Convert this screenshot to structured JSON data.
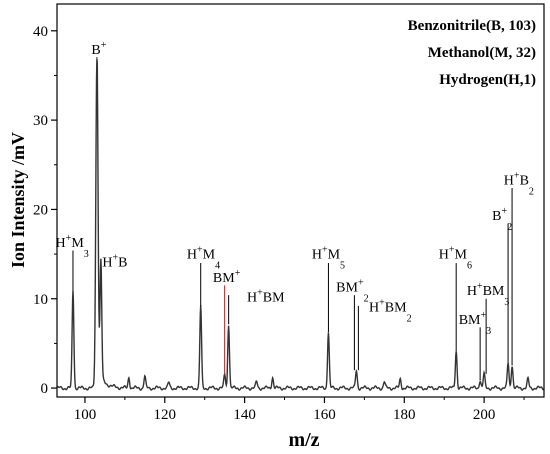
{
  "chart_data": {
    "type": "line",
    "title": "",
    "xlabel": "m/z",
    "ylabel": "Ion Intensity /mV",
    "xlim": [
      93,
      215
    ],
    "ylim": [
      -1,
      43
    ],
    "x_ticks": [
      "100",
      "120",
      "140",
      "160",
      "180",
      "200"
    ],
    "y_ticks": [
      "0",
      "10",
      "20",
      "30",
      "40"
    ],
    "legend": [
      "Benzonitrile(B, 103)",
      "Methanol(M, 32)",
      "Hydrogen(H,1)"
    ],
    "legend_position": "top-right",
    "grid": false,
    "peaks": [
      {
        "mz": 97,
        "intensity": 11.0
      },
      {
        "mz": 103,
        "intensity": 37.0
      },
      {
        "mz": 104,
        "intensity": 13.2
      },
      {
        "mz": 111,
        "intensity": 1.2
      },
      {
        "mz": 115,
        "intensity": 1.3
      },
      {
        "mz": 121,
        "intensity": 0.6
      },
      {
        "mz": 129,
        "intensity": 9.2
      },
      {
        "mz": 135,
        "intensity": 1.5
      },
      {
        "mz": 136,
        "intensity": 7.2
      },
      {
        "mz": 143,
        "intensity": 0.7
      },
      {
        "mz": 147,
        "intensity": 1.2
      },
      {
        "mz": 161,
        "intensity": 6.3
      },
      {
        "mz": 168,
        "intensity": 2.0
      },
      {
        "mz": 175,
        "intensity": 0.7
      },
      {
        "mz": 179,
        "intensity": 1.0
      },
      {
        "mz": 193,
        "intensity": 4.2
      },
      {
        "mz": 199,
        "intensity": 0.9
      },
      {
        "mz": 200,
        "intensity": 1.6
      },
      {
        "mz": 206,
        "intensity": 2.8
      },
      {
        "mz": 207,
        "intensity": 2.6
      },
      {
        "mz": 211,
        "intensity": 1.0
      }
    ],
    "annotations": [
      {
        "base": "B",
        "sup": "+",
        "parts": [],
        "mz": 103,
        "text_x": 103.5,
        "text_y": 37.4,
        "line_top": null,
        "line_bottom": null,
        "color": "#000000"
      },
      {
        "base": "H",
        "sup": "+",
        "parts": [
          [
            "M",
            ""
          ],
          [
            "3",
            "sub"
          ]
        ],
        "mz": 97,
        "text_x": 96.8,
        "text_y": 15.8,
        "line_top": 15.4,
        "line_bottom": 11.0,
        "color": "#000000"
      },
      {
        "base": "H",
        "sup": "+",
        "parts": [
          [
            "B",
            ""
          ]
        ],
        "mz": 104,
        "text_x": 107.5,
        "text_y": 13.6,
        "line_top": null,
        "line_bottom": null,
        "color": "#000000"
      },
      {
        "base": "H",
        "sup": "+",
        "parts": [
          [
            "M",
            ""
          ],
          [
            "4",
            "sub"
          ]
        ],
        "mz": 129,
        "text_x": 129.7,
        "text_y": 14.5,
        "line_top": 14.0,
        "line_bottom": 9.2,
        "color": "#000000"
      },
      {
        "base": "BM",
        "sup": "+",
        "parts": [],
        "mz": 135,
        "text_x": 135.5,
        "text_y": 11.9,
        "line_top": 11.5,
        "line_bottom": 1.5,
        "color": "#ff0000"
      },
      {
        "base": "H",
        "sup": "+",
        "parts": [
          [
            "BM",
            ""
          ]
        ],
        "mz": 136,
        "text_x": 145.3,
        "text_y": 9.7,
        "line_top": 10.4,
        "line_bottom": 7.2,
        "color": "#000000"
      },
      {
        "base": "H",
        "sup": "+",
        "parts": [
          [
            "M",
            ""
          ],
          [
            "5",
            "sub"
          ]
        ],
        "mz": 161,
        "text_x": 161.0,
        "text_y": 14.5,
        "line_top": 14.0,
        "line_bottom": 6.3,
        "color": "#000000"
      },
      {
        "base": "BM",
        "sup": "+",
        "parts": [
          [
            "2",
            "sub"
          ]
        ],
        "mz": 167.5,
        "text_x": 167.0,
        "text_y": 10.8,
        "line_top": 10.4,
        "line_bottom": 2.0,
        "color": "#000000"
      },
      {
        "base": "H",
        "sup": "+",
        "parts": [
          [
            "BM",
            ""
          ],
          [
            "2",
            "sub"
          ]
        ],
        "mz": 168.5,
        "text_x": 176.5,
        "text_y": 8.6,
        "line_top": 9.2,
        "line_bottom": 2.0,
        "color": "#000000"
      },
      {
        "base": "H",
        "sup": "+",
        "parts": [
          [
            "M",
            ""
          ],
          [
            "6",
            "sub"
          ]
        ],
        "mz": 193,
        "text_x": 192.8,
        "text_y": 14.5,
        "line_top": 14.0,
        "line_bottom": 4.2,
        "color": "#000000"
      },
      {
        "base": "H",
        "sup": "+",
        "parts": [
          [
            "BM",
            ""
          ],
          [
            "3",
            "sub"
          ]
        ],
        "mz": 200.5,
        "text_x": 201.0,
        "text_y": 10.4,
        "line_top": 10.0,
        "line_bottom": 1.6,
        "color": "#000000"
      },
      {
        "base": "BM",
        "sup": "+",
        "parts": [
          [
            "3",
            "sub"
          ]
        ],
        "mz": 199,
        "text_x": 197.7,
        "text_y": 7.2,
        "line_top": 6.8,
        "line_bottom": 0.9,
        "color": "#000000"
      },
      {
        "base": "B",
        "sup": "+",
        "parts": [
          [
            "2",
            "sub"
          ]
        ],
        "mz": 206,
        "text_x": 204.5,
        "text_y": 18.8,
        "line_top": 18.4,
        "line_bottom": 2.8,
        "color": "#000000"
      },
      {
        "base": "H",
        "sup": "+",
        "parts": [
          [
            "B",
            ""
          ],
          [
            "2",
            "sub"
          ]
        ],
        "mz": 207,
        "text_x": 208.7,
        "text_y": 22.8,
        "line_top": 22.4,
        "line_bottom": 2.6,
        "color": "#000000"
      }
    ]
  },
  "colors": {
    "trace": "#333333",
    "axis": "#000000",
    "highlight": "#ff0000"
  }
}
